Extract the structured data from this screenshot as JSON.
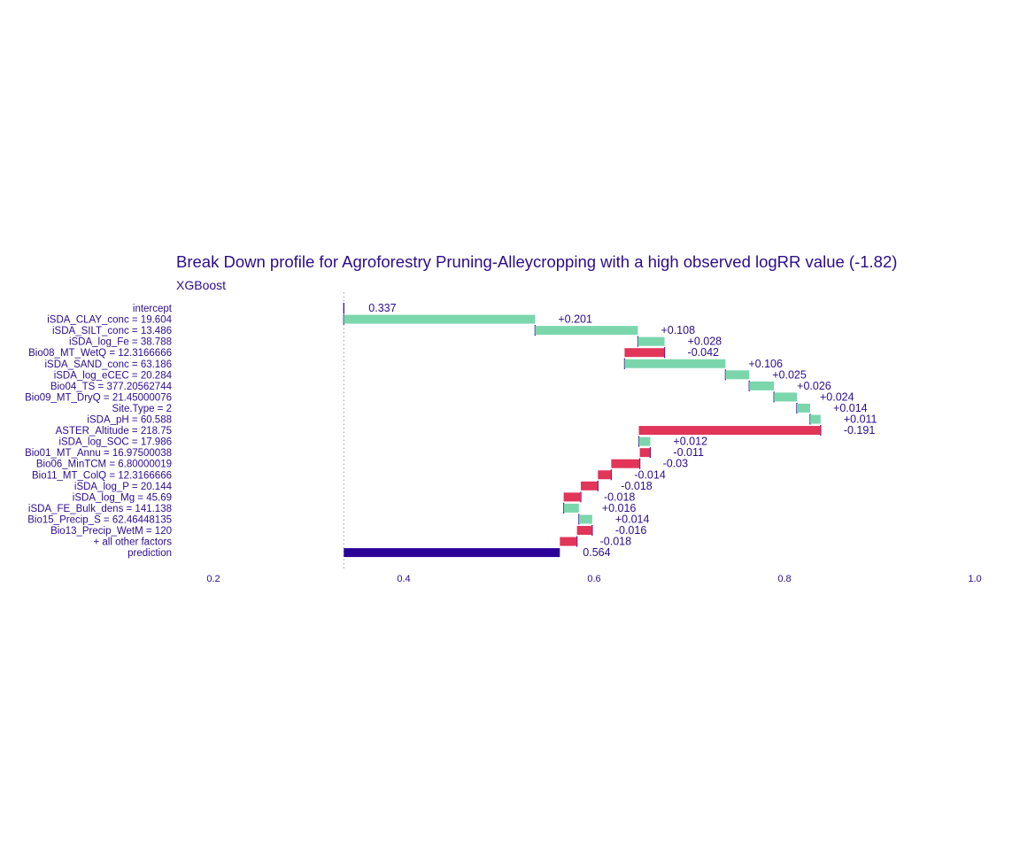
{
  "chart_data": {
    "type": "bar",
    "subtype": "waterfall",
    "title": "Break Down profile for Agroforestry Pruning-Alleycropping with a high observed logRR value (-1.82)",
    "subtitle": "XGBoost",
    "xlabel": "",
    "ylabel": "",
    "xlim": [
      0.2,
      1.0
    ],
    "x_ticks": [
      0.2,
      0.4,
      0.6,
      0.8,
      1.0
    ],
    "x_tick_labels": [
      "0.2",
      "0.4",
      "0.6",
      "0.8",
      "1.0"
    ],
    "grid": false,
    "baseline": 0.337,
    "rows": [
      {
        "label": "intercept",
        "start": 0.337,
        "end": 0.337,
        "value_label": "0.337",
        "kind": "intercept"
      },
      {
        "label": "iSDA_CLAY_conc = 19.604",
        "start": 0.337,
        "end": 0.538,
        "value_label": "+0.201",
        "kind": "increase"
      },
      {
        "label": "iSDA_SILT_conc = 13.486",
        "start": 0.538,
        "end": 0.646,
        "value_label": "+0.108",
        "kind": "increase"
      },
      {
        "label": "iSDA_log_Fe = 38.788",
        "start": 0.646,
        "end": 0.674,
        "value_label": "+0.028",
        "kind": "increase"
      },
      {
        "label": "Bio08_MT_WetQ = 12.3166666",
        "start": 0.674,
        "end": 0.632,
        "value_label": "-0.042",
        "kind": "decrease"
      },
      {
        "label": "iSDA_SAND_conc = 63.186",
        "start": 0.632,
        "end": 0.738,
        "value_label": "+0.106",
        "kind": "increase"
      },
      {
        "label": "iSDA_log_eCEC = 20.284",
        "start": 0.738,
        "end": 0.763,
        "value_label": "+0.025",
        "kind": "increase"
      },
      {
        "label": "Bio04_TS = 377.20562744",
        "start": 0.763,
        "end": 0.789,
        "value_label": "+0.026",
        "kind": "increase"
      },
      {
        "label": "Bio09_MT_DryQ = 21.45000076",
        "start": 0.789,
        "end": 0.813,
        "value_label": "+0.024",
        "kind": "increase"
      },
      {
        "label": "Site.Type = 2",
        "start": 0.813,
        "end": 0.827,
        "value_label": "+0.014",
        "kind": "increase"
      },
      {
        "label": "iSDA_pH = 60.588",
        "start": 0.827,
        "end": 0.838,
        "value_label": "+0.011",
        "kind": "increase"
      },
      {
        "label": "ASTER_Altitude = 218.75",
        "start": 0.838,
        "end": 0.647,
        "value_label": "-0.191",
        "kind": "decrease"
      },
      {
        "label": "iSDA_log_SOC = 17.986",
        "start": 0.647,
        "end": 0.659,
        "value_label": "+0.012",
        "kind": "increase"
      },
      {
        "label": "Bio01_MT_Annu = 16.97500038",
        "start": 0.659,
        "end": 0.648,
        "value_label": "-0.011",
        "kind": "decrease"
      },
      {
        "label": "Bio06_MinTCM = 6.80000019",
        "start": 0.648,
        "end": 0.618,
        "value_label": "-0.03",
        "kind": "decrease"
      },
      {
        "label": "Bio11_MT_ColQ = 12.3166666",
        "start": 0.618,
        "end": 0.604,
        "value_label": "-0.014",
        "kind": "decrease"
      },
      {
        "label": "iSDA_log_P = 20.144",
        "start": 0.604,
        "end": 0.586,
        "value_label": "-0.018",
        "kind": "decrease"
      },
      {
        "label": "iSDA_log_Mg = 45.69",
        "start": 0.586,
        "end": 0.568,
        "value_label": "-0.018",
        "kind": "decrease"
      },
      {
        "label": "iSDA_FE_Bulk_dens = 141.138",
        "start": 0.568,
        "end": 0.584,
        "value_label": "+0.016",
        "kind": "increase"
      },
      {
        "label": "Bio15_Precip_S = 62.46448135",
        "start": 0.584,
        "end": 0.598,
        "value_label": "+0.014",
        "kind": "increase"
      },
      {
        "label": "Bio13_Precip_WetM = 120",
        "start": 0.598,
        "end": 0.582,
        "value_label": "-0.016",
        "kind": "decrease"
      },
      {
        "label": "+ all other factors",
        "start": 0.582,
        "end": 0.564,
        "value_label": "-0.018",
        "kind": "decrease"
      },
      {
        "label": "prediction",
        "start": 0.337,
        "end": 0.564,
        "value_label": "0.564",
        "kind": "prediction"
      }
    ],
    "colors": {
      "increase": "#7bd6ac",
      "decrease": "#e1355a",
      "prediction": "#2b0097",
      "connector": "#2b0097",
      "text": "#2b0c8c",
      "baseline_line": "#999999"
    }
  }
}
